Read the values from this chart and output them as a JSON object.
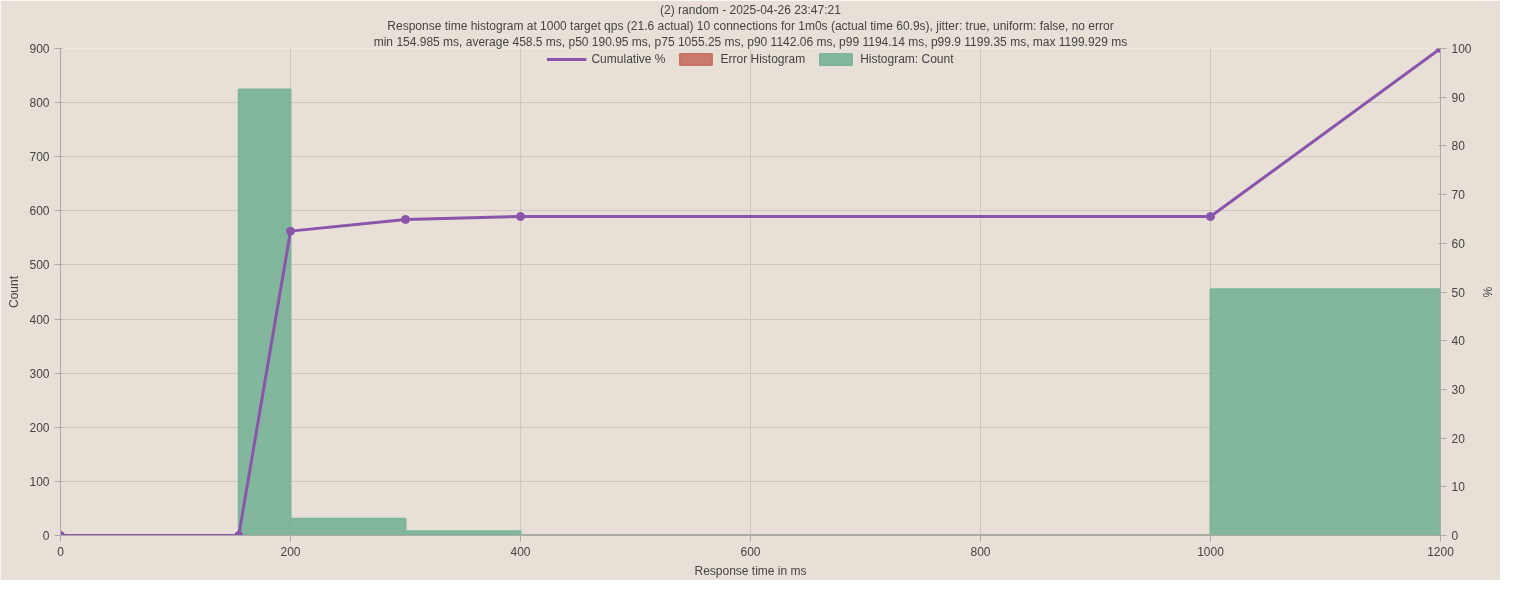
{
  "chart_data": {
    "type": "histogram",
    "title": "(2) random - 2025-04-26 23:47:21",
    "subtitle": "Response time histogram at 1000 target qps (21.6 actual) 10 connections for 1m0s (actual time 60.9s), jitter: true, uniform: false, no error",
    "annotations": [
      "min 154.985 ms, average 458.5 ms, p50 190.95 ms, p75 1055.25 ms, p90 1142.06 ms, p99 1194.14 ms, p99.9 1199.35 ms, max 1199.929 ms"
    ],
    "xlabel": "Response time in ms",
    "ylabel": "Count",
    "y2label": "%",
    "bins": [
      154.985,
      200,
      300,
      400,
      1000,
      1200
    ],
    "series": [
      {
        "name": "Cumulative %",
        "type": "line",
        "axis": "y2",
        "color": "#8a55ab",
        "marker": "circle",
        "x": [
          0,
          154.985,
          200,
          300,
          400,
          1000,
          1200
        ],
        "values": [
          0,
          0,
          62.5,
          64.9,
          65.5,
          65.5,
          100
        ]
      },
      {
        "name": "Error Histogram",
        "color": "#c87464",
        "values": [
          0,
          0,
          0,
          0,
          0
        ]
      },
      {
        "name": "Histogram: Count",
        "color": "#7db49a",
        "values": [
          824,
          31,
          8,
          0,
          455
        ]
      }
    ],
    "xlim": [
      0,
      1200
    ],
    "xticks": [
      0,
      200,
      400,
      600,
      800,
      1000,
      1200
    ],
    "ylim": [
      0,
      900
    ],
    "yticks": [
      0,
      100,
      200,
      300,
      400,
      500,
      600,
      700,
      800,
      900
    ],
    "y2lim": [
      0,
      100
    ],
    "y2ticks": [
      0,
      10,
      20,
      30,
      40,
      50,
      60,
      70,
      80,
      90,
      100
    ],
    "grid": true,
    "legend": "top"
  }
}
